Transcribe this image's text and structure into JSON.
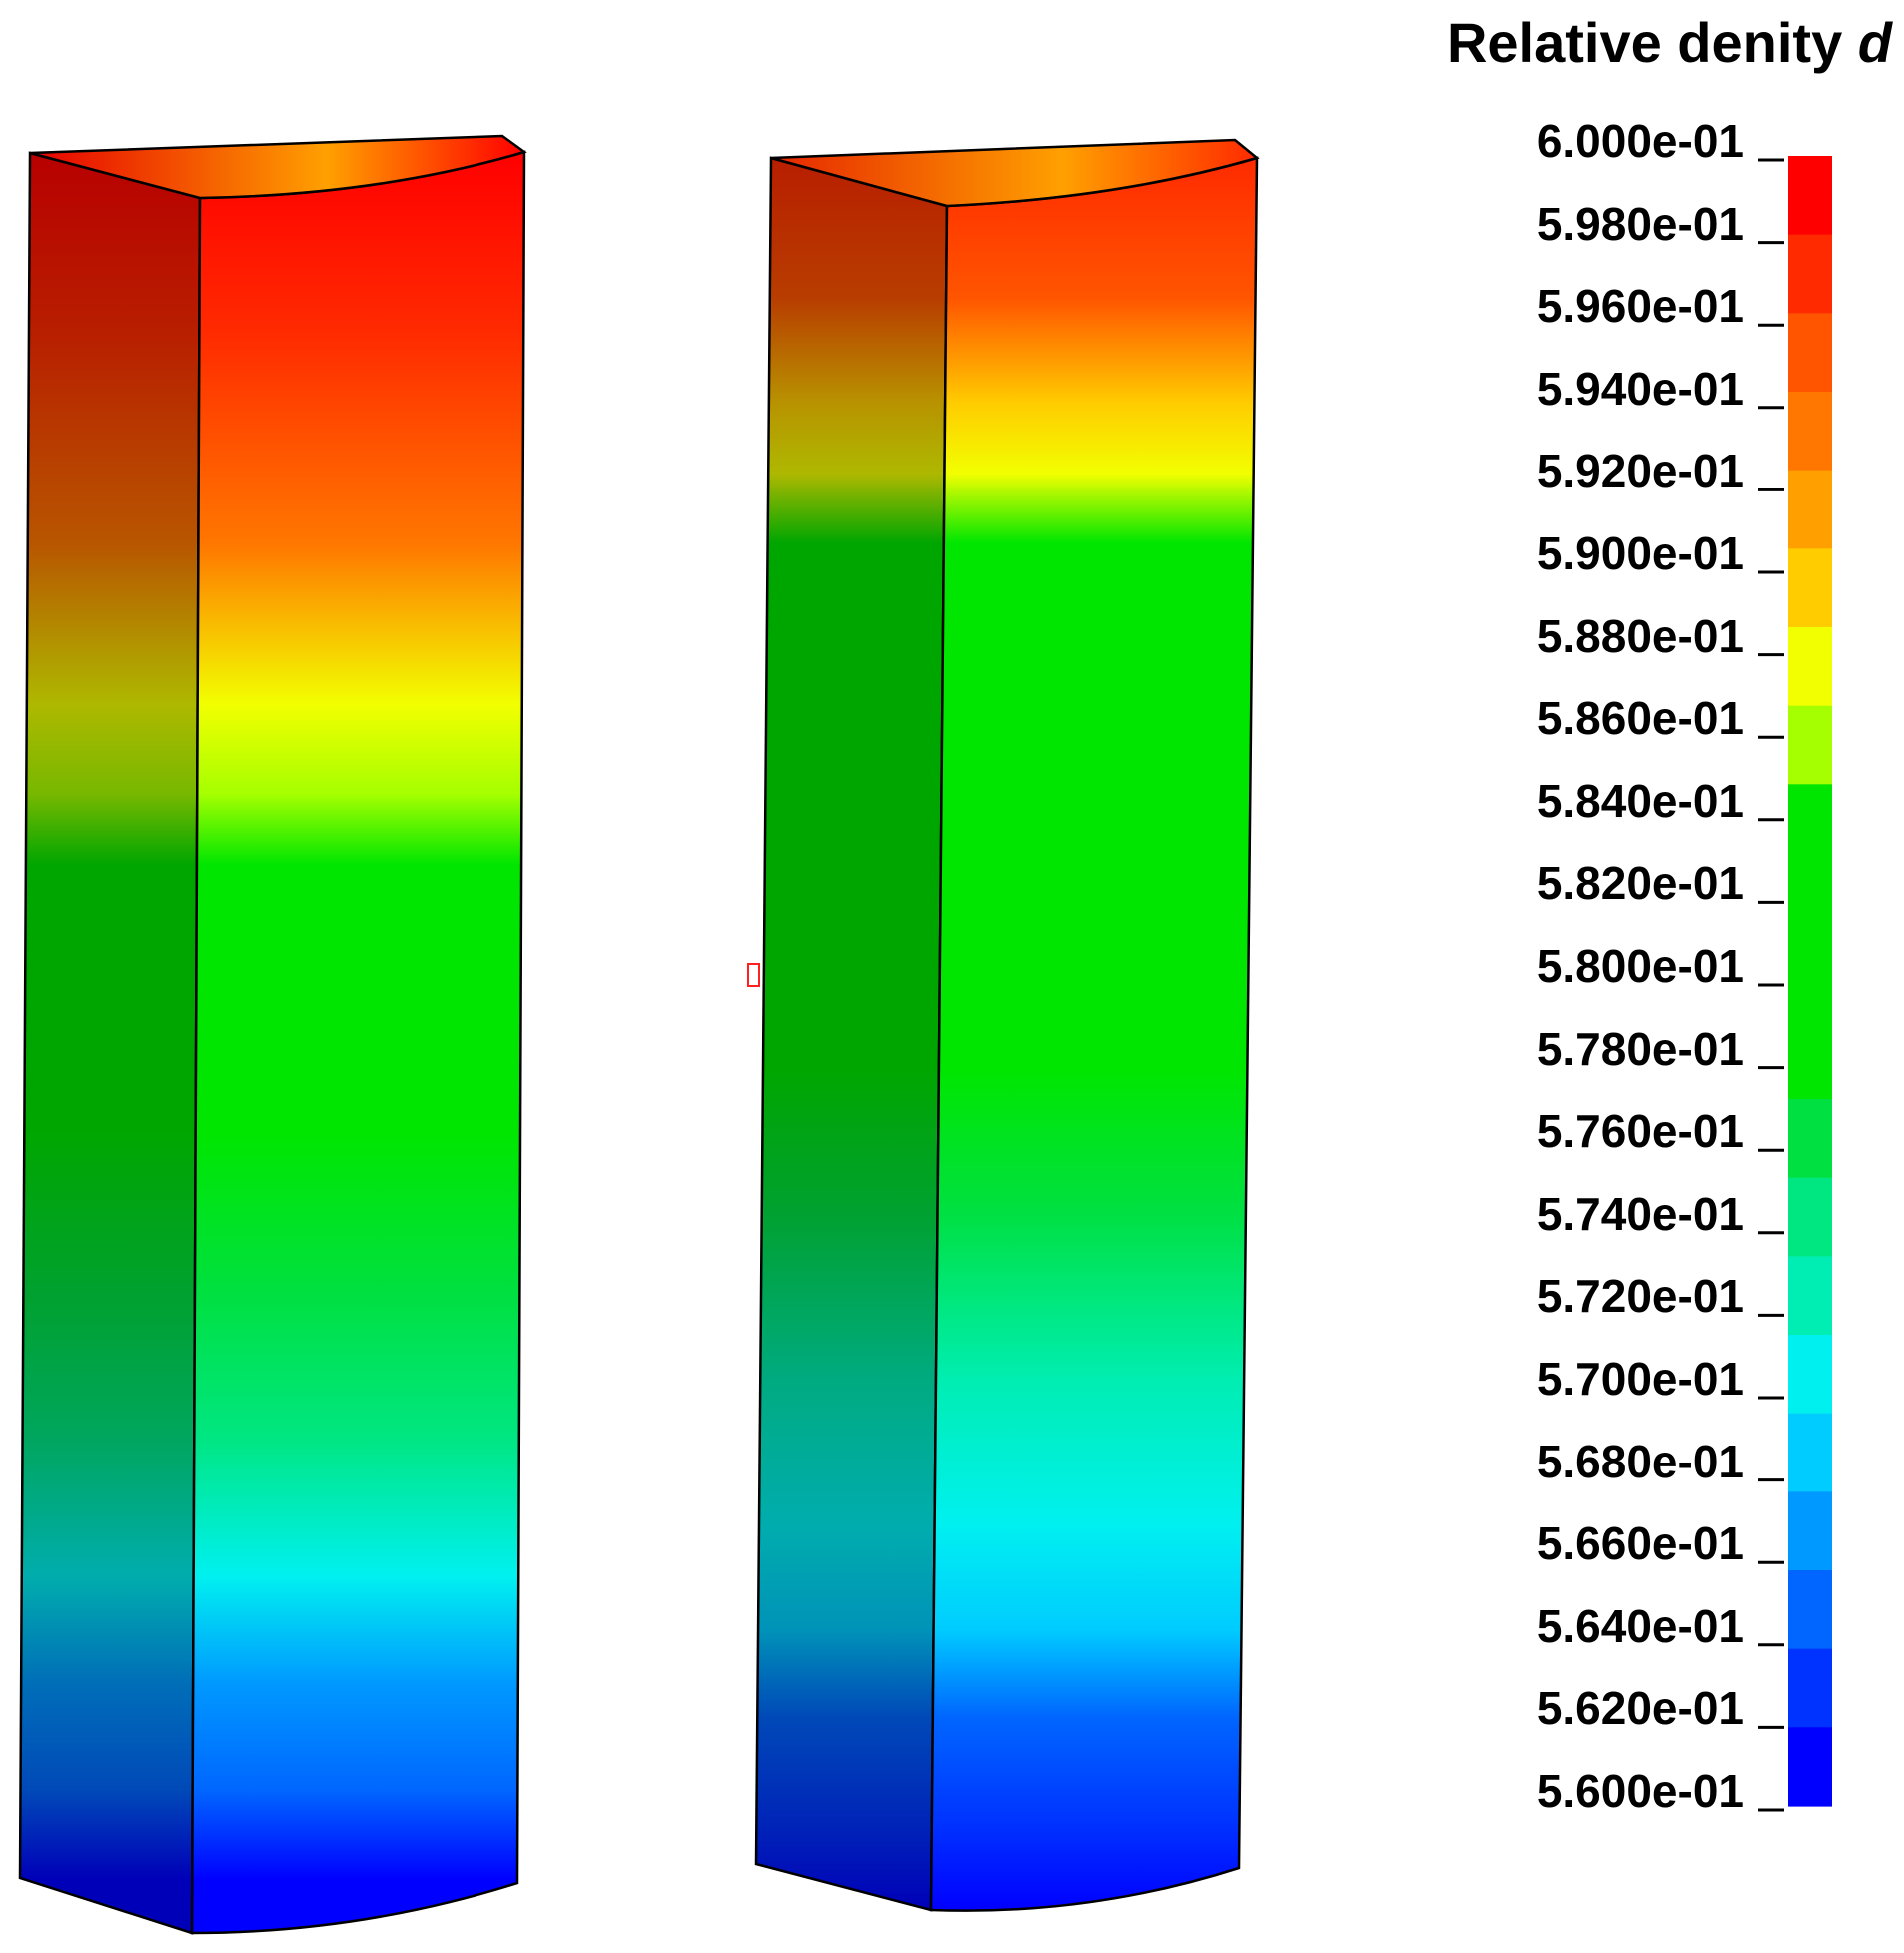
{
  "chart_data": {
    "type": "heatmap",
    "title": "Relative denity",
    "title_symbol": "d",
    "colorbar": {
      "min": 0.56,
      "max": 0.6,
      "tick_labels": [
        "6.000e-01",
        "5.980e-01",
        "5.960e-01",
        "5.940e-01",
        "5.920e-01",
        "5.900e-01",
        "5.880e-01",
        "5.860e-01",
        "5.840e-01",
        "5.820e-01",
        "5.800e-01",
        "5.780e-01",
        "5.760e-01",
        "5.740e-01",
        "5.720e-01",
        "5.700e-01",
        "5.680e-01",
        "5.660e-01",
        "5.640e-01",
        "5.620e-01",
        "5.600e-01"
      ],
      "band_colors_top_to_bottom": [
        "#ff0000",
        "#ff2a00",
        "#ff5500",
        "#ff7700",
        "#ffa000",
        "#ffcc00",
        "#f2ff00",
        "#a6ff00",
        "#00e600",
        "#00e600",
        "#00e600",
        "#00e600",
        "#00e040",
        "#00e680",
        "#00eeb4",
        "#00f0f0",
        "#00ccff",
        "#0099ff",
        "#0066ff",
        "#0033ff",
        "#0000ff"
      ]
    },
    "specimens": [
      {
        "name": "left",
        "front_profile": [
          {
            "value": 0.5995,
            "level": 0.0
          },
          {
            "value": 0.598,
            "level": 0.1
          },
          {
            "value": 0.5935,
            "level": 0.22
          },
          {
            "value": 0.5885,
            "level": 0.31
          },
          {
            "value": 0.586,
            "level": 0.36
          },
          {
            "value": 0.584,
            "level": 0.4
          },
          {
            "value": 0.581,
            "level": 0.55
          },
          {
            "value": 0.577,
            "level": 0.64
          },
          {
            "value": 0.574,
            "level": 0.72
          },
          {
            "value": 0.57,
            "level": 0.8
          },
          {
            "value": 0.567,
            "level": 0.86
          },
          {
            "value": 0.564,
            "level": 0.92
          },
          {
            "value": 0.561,
            "level": 0.97
          },
          {
            "value": 0.56,
            "level": 1.0
          }
        ]
      },
      {
        "name": "right",
        "front_profile": [
          {
            "value": 0.5965,
            "level": 0.0
          },
          {
            "value": 0.5945,
            "level": 0.08
          },
          {
            "value": 0.59,
            "level": 0.14
          },
          {
            "value": 0.5875,
            "level": 0.18
          },
          {
            "value": 0.5845,
            "level": 0.22
          },
          {
            "value": 0.583,
            "level": 0.4
          },
          {
            "value": 0.58,
            "level": 0.52
          },
          {
            "value": 0.576,
            "level": 0.6
          },
          {
            "value": 0.573,
            "level": 0.7
          },
          {
            "value": 0.57,
            "level": 0.78
          },
          {
            "value": 0.568,
            "level": 0.84
          },
          {
            "value": 0.565,
            "level": 0.89
          },
          {
            "value": 0.562,
            "level": 0.95
          },
          {
            "value": 0.5605,
            "level": 1.0
          }
        ]
      }
    ]
  }
}
